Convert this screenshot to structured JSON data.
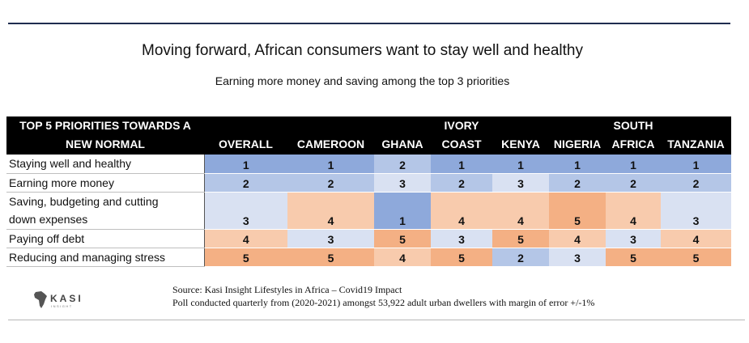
{
  "title": "Moving forward, African consumers want to stay well and healthy",
  "subtitle": "Earning more money and saving among the top 3 priorities",
  "chart_data": {
    "type": "table",
    "corner_header": [
      "TOP 5 PRIORITIES TOWARDS A",
      "NEW NORMAL"
    ],
    "columns": [
      {
        "line1": "",
        "line2": "OVERALL"
      },
      {
        "line1": "",
        "line2": "CAMEROON"
      },
      {
        "line1": "",
        "line2": "GHANA"
      },
      {
        "line1": "IVORY",
        "line2": "COAST"
      },
      {
        "line1": "",
        "line2": "KENYA"
      },
      {
        "line1": "",
        "line2": "NIGERIA"
      },
      {
        "line1": "SOUTH",
        "line2": "AFRICA"
      },
      {
        "line1": "",
        "line2": "TANZANIA"
      }
    ],
    "rows": [
      {
        "label": [
          "Staying well and healthy"
        ],
        "values": [
          1,
          1,
          2,
          1,
          1,
          1,
          1,
          1
        ]
      },
      {
        "label": [
          "Earning more money"
        ],
        "values": [
          2,
          2,
          3,
          2,
          3,
          2,
          2,
          2
        ]
      },
      {
        "label": [
          "Saving, budgeting and cutting",
          "down expenses"
        ],
        "values": [
          3,
          4,
          1,
          4,
          4,
          5,
          4,
          3
        ]
      },
      {
        "label": [
          "Paying off debt"
        ],
        "values": [
          4,
          3,
          5,
          3,
          5,
          4,
          3,
          4
        ]
      },
      {
        "label": [
          "Reducing and managing stress"
        ],
        "values": [
          5,
          5,
          4,
          5,
          2,
          3,
          5,
          5
        ]
      }
    ],
    "rank_colors": {
      "1": "#8ea9db",
      "2": "#b4c6e7",
      "3": "#d9e1f2",
      "4": "#f8cbad",
      "5": "#f4b084"
    }
  },
  "logo": {
    "icon": "africa-map-icon",
    "name": "KASI",
    "tagline": "INSIGHT"
  },
  "source": {
    "line1": "Source: Kasi Insight  Lifestyles in Africa – Covid19 Impact",
    "line2": "Poll conducted quarterly from (2020-2021) amongst 53,922 adult urban dwellers with margin of error +/-1%"
  }
}
